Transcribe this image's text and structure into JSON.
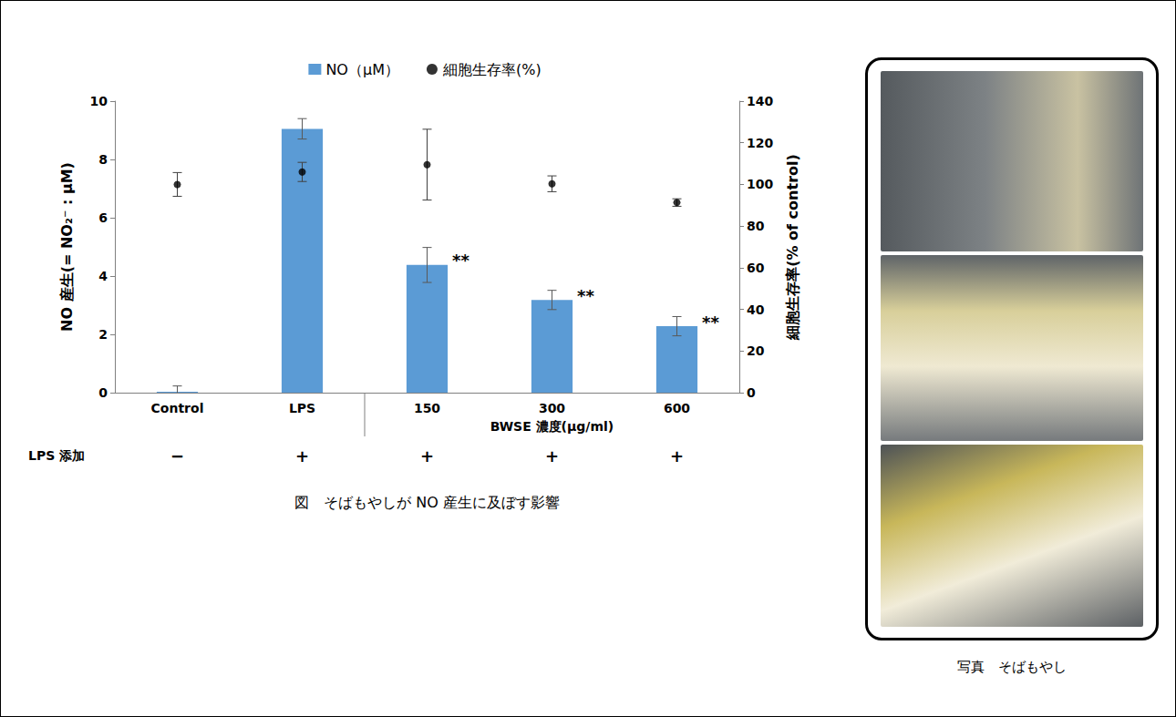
{
  "chart_data": {
    "type": "bar",
    "caption": "図　そばもやしが NO 産生に及ぼす影響",
    "categories": [
      "Control",
      "LPS",
      "150",
      "300",
      "600"
    ],
    "xlabel": "BWSE 濃度(μg/ml)",
    "row_label": "LPS 添加",
    "row_values": [
      "−",
      "+",
      "+",
      "+",
      "+"
    ],
    "ylabel": "NO 産生(= NO₂⁻ : μM)",
    "y2label": "細胞生存率(% of control)",
    "ylim": [
      0,
      10
    ],
    "yticks": [
      0,
      2,
      4,
      6,
      8,
      10
    ],
    "y2lim": [
      0,
      140
    ],
    "y2ticks": [
      0,
      20,
      40,
      60,
      80,
      100,
      120,
      140
    ],
    "grid": false,
    "legend": "top",
    "series": [
      {
        "name": "NO（μM）",
        "type": "bar",
        "color": "#5b9bd5",
        "values": [
          0.03,
          9.05,
          4.38,
          3.18,
          2.28
        ],
        "errors": [
          0.2,
          0.35,
          0.6,
          0.33,
          0.33
        ],
        "annotations": [
          null,
          null,
          "**",
          "**",
          "**"
        ]
      },
      {
        "name": "細胞生存率(%)",
        "type": "scatter",
        "axis": "y2",
        "color": "#000000",
        "marker": "circle",
        "values": [
          100,
          106,
          109.5,
          100.3,
          91.3
        ],
        "errors": [
          5.7,
          4.6,
          17,
          3.8,
          1.8
        ]
      }
    ]
  },
  "photo": {
    "caption": "写真　そばもやし"
  }
}
